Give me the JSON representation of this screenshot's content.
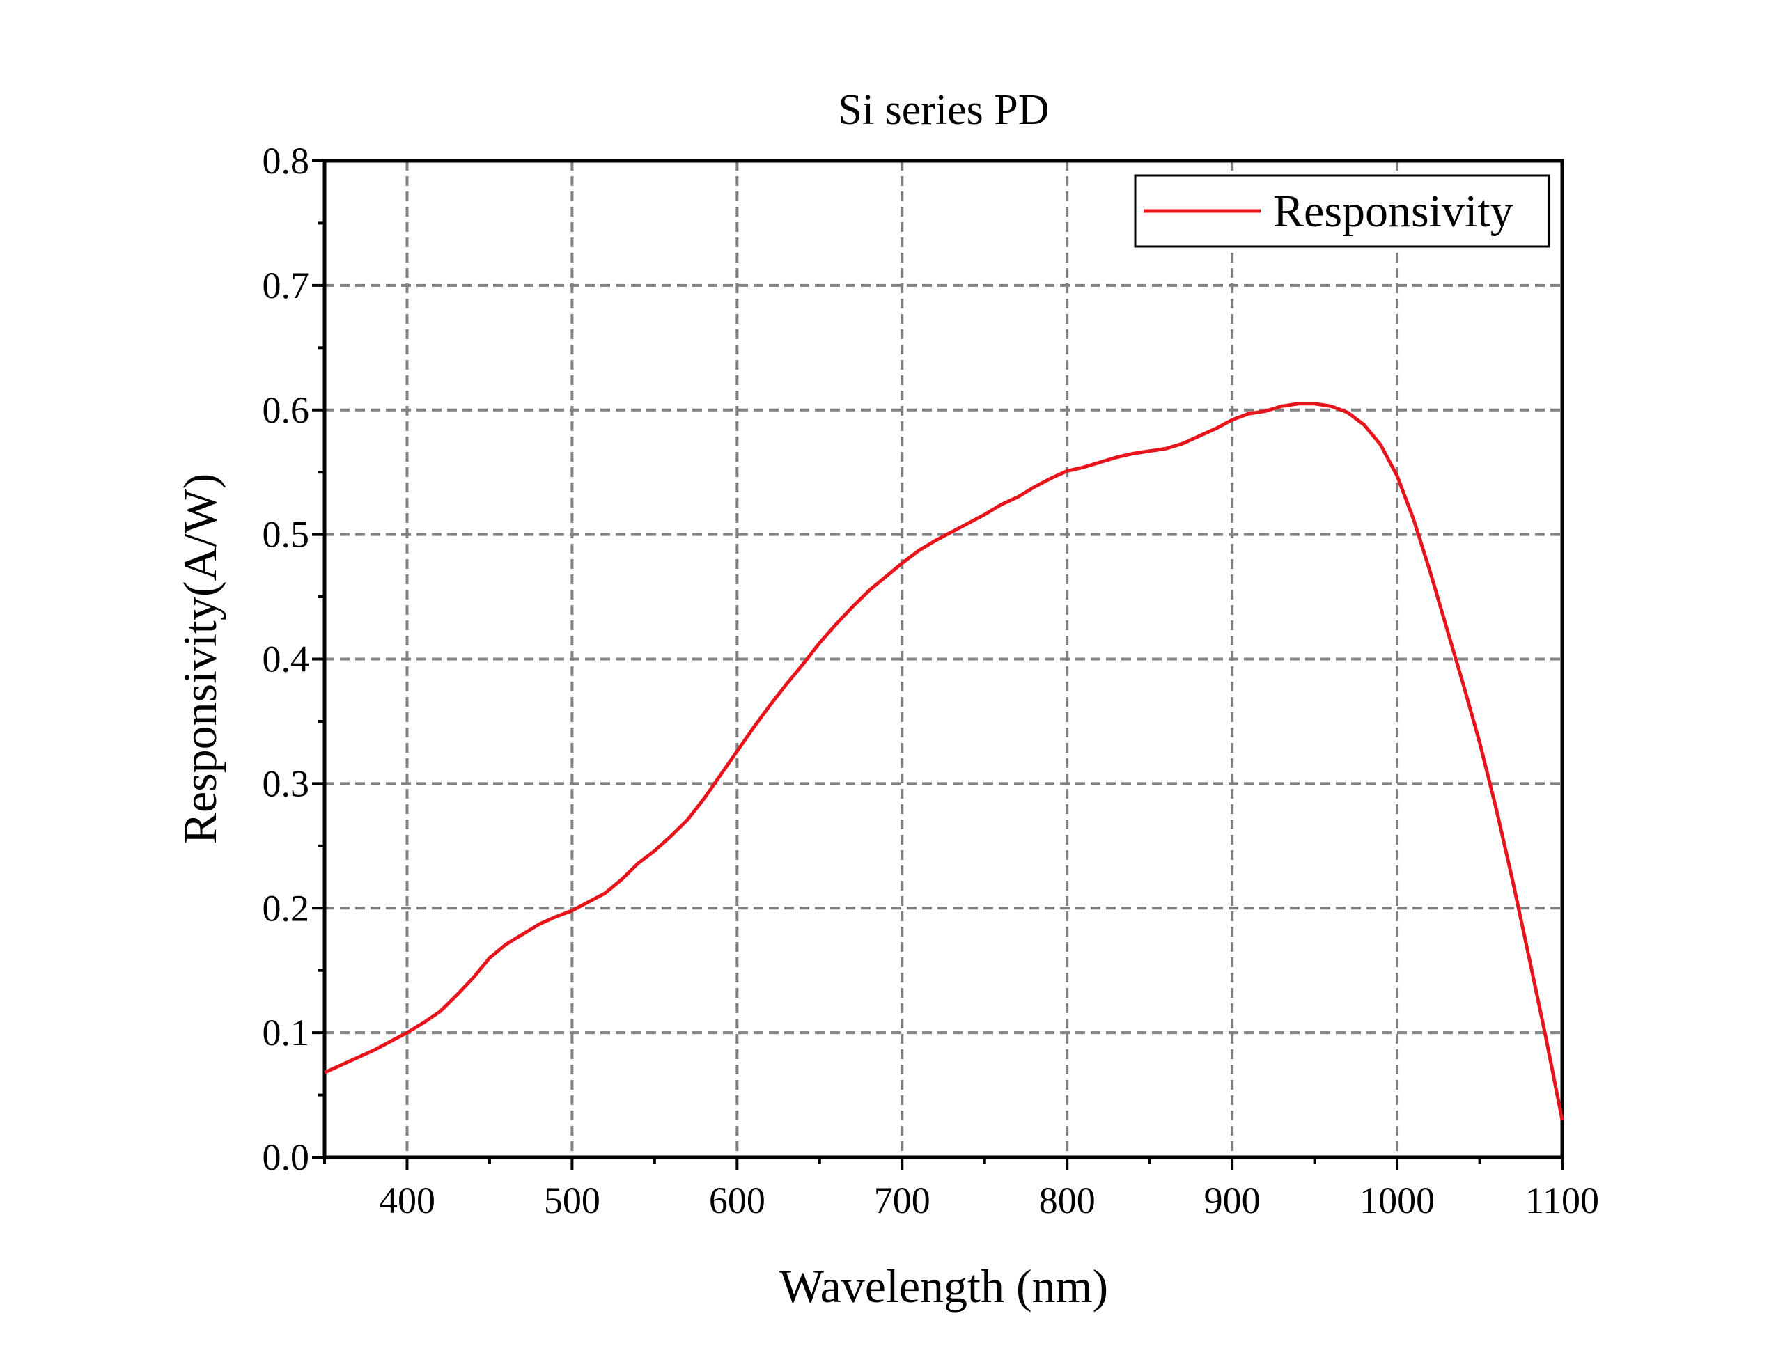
{
  "chart_data": {
    "type": "line",
    "title": "Si series PD",
    "xlabel": "Wavelength (nm)",
    "ylabel": "Responsivity(A/W)",
    "xlim": [
      350,
      1100
    ],
    "xticks": [
      400,
      500,
      600,
      700,
      800,
      900,
      1000,
      1100
    ],
    "ylim": [
      0,
      0.8
    ],
    "yticks": [
      {
        "value": 0,
        "label": "0.0"
      },
      0.1,
      0.2,
      0.3,
      0.4,
      0.5,
      0.6,
      0.7,
      0.8
    ],
    "grid": true,
    "legend": "upper right",
    "x": [
      350,
      360,
      370,
      380,
      390,
      400,
      410,
      420,
      430,
      440,
      450,
      460,
      470,
      480,
      490,
      500,
      510,
      520,
      530,
      540,
      550,
      560,
      570,
      580,
      590,
      600,
      610,
      620,
      630,
      640,
      650,
      660,
      670,
      680,
      690,
      700,
      710,
      720,
      730,
      740,
      750,
      760,
      770,
      780,
      790,
      800,
      810,
      820,
      830,
      840,
      850,
      860,
      870,
      880,
      890,
      900,
      910,
      920,
      930,
      940,
      950,
      960,
      970,
      980,
      990,
      1000,
      1010,
      1020,
      1030,
      1040,
      1050,
      1060,
      1070,
      1080,
      1090,
      1100
    ],
    "series": [
      {
        "name": "Responsivity",
        "color": "#e8141c",
        "values": [
          0.068,
          0.074,
          0.08,
          0.086,
          0.093,
          0.1,
          0.108,
          0.117,
          0.13,
          0.144,
          0.16,
          0.171,
          0.179,
          0.187,
          0.193,
          0.198,
          0.205,
          0.212,
          0.223,
          0.236,
          0.246,
          0.258,
          0.271,
          0.288,
          0.307,
          0.326,
          0.345,
          0.363,
          0.38,
          0.396,
          0.413,
          0.428,
          0.442,
          0.455,
          0.466,
          0.477,
          0.487,
          0.495,
          0.502,
          0.509,
          0.516,
          0.524,
          0.53,
          0.538,
          0.545,
          0.551,
          0.554,
          0.558,
          0.562,
          0.565,
          0.567,
          0.569,
          0.573,
          0.579,
          0.585,
          0.592,
          0.597,
          0.599,
          0.603,
          0.605,
          0.605,
          0.603,
          0.598,
          0.588,
          0.572,
          0.547,
          0.512,
          0.47,
          0.425,
          0.38,
          0.333,
          0.28,
          0.222,
          0.16,
          0.097,
          0.03
        ]
      }
    ]
  }
}
